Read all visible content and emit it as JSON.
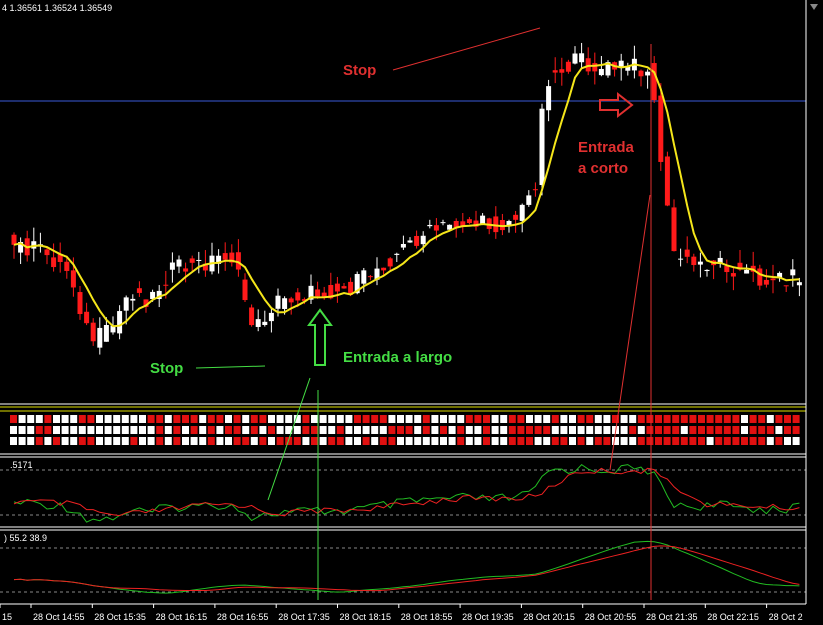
{
  "header": {
    "ohlc": "4 1.36561 1.36524 1.36549"
  },
  "annotations": {
    "stop_short": "Stop",
    "entry_short": [
      "Entrada",
      "a corto"
    ],
    "stop_long": "Stop",
    "entry_long": "Entrada a largo"
  },
  "indicators": {
    "panel1": ".5171",
    "panel2": ") 55.2 38.9"
  },
  "time_axis": [
    "15",
    "28 Oct 14:55",
    "28 Oct 15:35",
    "28 Oct 16:15",
    "28 Oct 16:55",
    "28 Oct 17:35",
    "28 Oct 18:15",
    "28 Oct 18:55",
    "28 Oct 19:35",
    "28 Oct 20:15",
    "28 Oct 20:55",
    "28 Oct 21:35",
    "28 Oct 22:15",
    "28 Oct 2"
  ]
}
